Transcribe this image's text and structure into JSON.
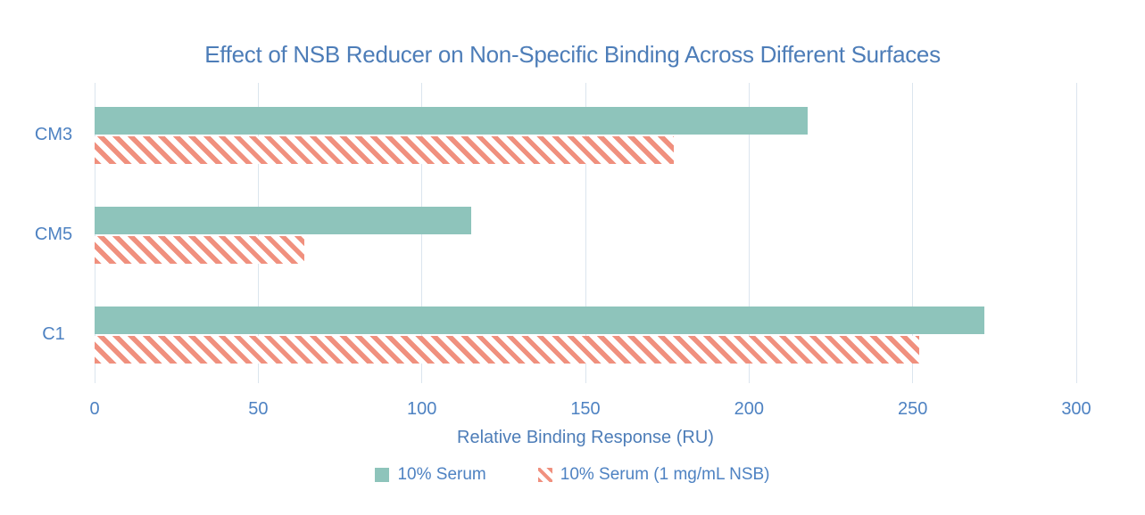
{
  "chart_data": {
    "type": "bar",
    "orientation": "horizontal",
    "title": "Effect of NSB Reducer on Non-Specific Binding Across Different Surfaces",
    "categories": [
      "CM3",
      "CM5",
      "C1"
    ],
    "series": [
      {
        "name": "10% Serum",
        "values": [
          218,
          115,
          272
        ],
        "style": "solid",
        "color": "#8EC4BB"
      },
      {
        "name": "10% Serum (1 mg/mL NSB)",
        "values": [
          177,
          64,
          252
        ],
        "style": "diagonal-hatch",
        "color": "#F0907E"
      }
    ],
    "xlabel": "Relative Binding Response (RU)",
    "ylabel": "",
    "xlim": [
      0,
      300
    ],
    "xticks": [
      0,
      50,
      100,
      150,
      200,
      250,
      300
    ],
    "grid": "vertical-gridlines",
    "legend_position": "bottom"
  },
  "colors": {
    "title_text": "#4D7DB8",
    "axis_text": "#4E82C2",
    "gridline": "#DBE5EE",
    "series_solid": "#8EC4BB",
    "series_hatch": "#F0907E",
    "background": "#FFFFFF"
  }
}
